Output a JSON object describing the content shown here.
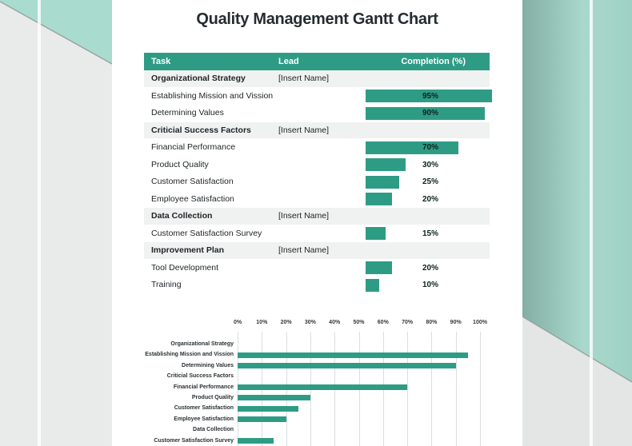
{
  "page": {
    "title": "Quality Management Gantt Chart"
  },
  "colors": {
    "teal": "#2E9C85",
    "mint_corner": "#A9DBCE",
    "right_panel_dark": "#83AEA4",
    "right_panel_light": "#A9D8CB",
    "bg_gray_left": "#E9EBEB",
    "bg_gray_right": "#E4E6E6",
    "section_row_bg": "#F0F1F1",
    "gridline": "#DADEDF",
    "diagonal_stroke": "#98A3A1"
  },
  "table": {
    "headers": [
      "Task",
      "Lead",
      "Completion (%)"
    ],
    "rows": [
      {
        "task": "Organizational Strategy",
        "lead": "[Insert Name]",
        "completion": null,
        "section": true
      },
      {
        "task": "Establishing Mission and Vission",
        "lead": "",
        "completion": 95,
        "section": false
      },
      {
        "task": "Determining Values",
        "lead": "",
        "completion": 90,
        "section": false
      },
      {
        "task": "Criticial Success Factors",
        "lead": "[Insert Name]",
        "completion": null,
        "section": true
      },
      {
        "task": "Financial Performance",
        "lead": "",
        "completion": 70,
        "section": false
      },
      {
        "task": "Product Quality",
        "lead": "",
        "completion": 30,
        "section": false
      },
      {
        "task": "Customer Satisfaction",
        "lead": "",
        "completion": 25,
        "section": false
      },
      {
        "task": "Employee Satisfaction",
        "lead": "",
        "completion": 20,
        "section": false
      },
      {
        "task": "Data Collection",
        "lead": "[Insert Name]",
        "completion": null,
        "section": true
      },
      {
        "task": "Customer Satisfaction Survey",
        "lead": "",
        "completion": 15,
        "section": false
      },
      {
        "task": "Improvement Plan",
        "lead": "[Insert Name]",
        "completion": null,
        "section": true
      },
      {
        "task": "Tool Development",
        "lead": "",
        "completion": 20,
        "section": false
      },
      {
        "task": "Training",
        "lead": "",
        "completion": 10,
        "section": false
      }
    ]
  },
  "chart_data": {
    "type": "bar",
    "orientation": "horizontal",
    "title": "",
    "xlabel": "",
    "ylabel": "",
    "categories": [
      "Organizational Strategy",
      "Establishing Mission and Vission",
      "Determining Values",
      "Criticial Success Factors",
      "Financial Performance",
      "Product Quality",
      "Customer Satisfaction",
      "Employee Satisfaction",
      "Data Collection",
      "Customer Satisfaction Survey"
    ],
    "values": [
      0,
      95,
      90,
      0,
      70,
      30,
      25,
      20,
      0,
      15
    ],
    "xlim": [
      0,
      100
    ],
    "tick_labels": [
      "0%",
      "10%",
      "20%",
      "30%",
      "40%",
      "50%",
      "60%",
      "70%",
      "80%",
      "90%",
      "100%"
    ],
    "axis_position": "top",
    "grid": true,
    "legend": false,
    "bar_color": "#2E9C85",
    "clipped_at_bottom": true
  }
}
